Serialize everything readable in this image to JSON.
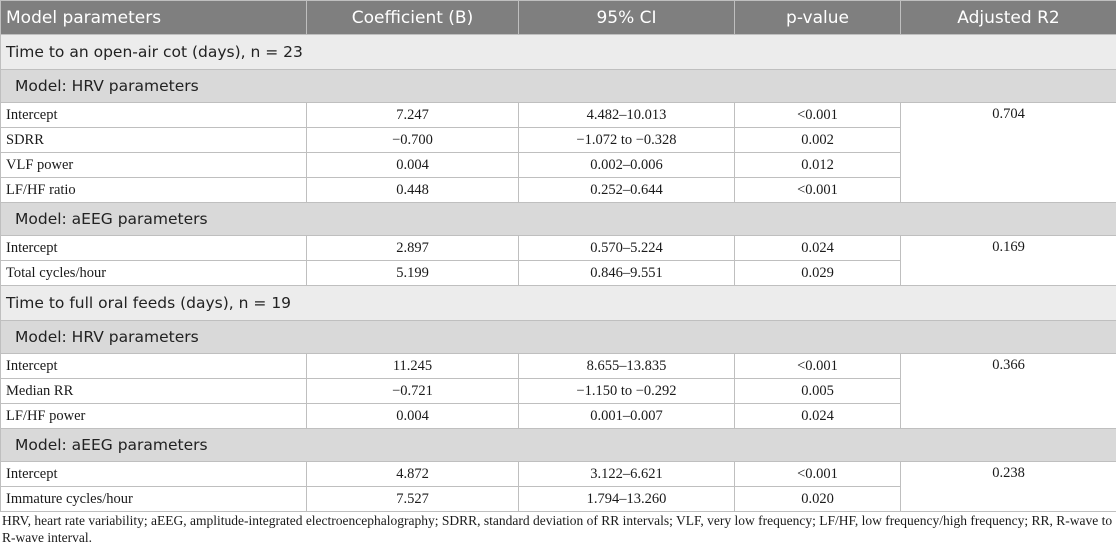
{
  "columns": [
    "Model parameters",
    "Coefficient (B)",
    "95% CI",
    "p-value",
    "Adjusted R2"
  ],
  "sections": [
    {
      "title": "Time to an open-air cot (days), n = 23",
      "models": [
        {
          "title": "Model: HRV parameters",
          "adjusted_r2": "0.704",
          "rows": [
            {
              "param": "Intercept",
              "coef": "7.247",
              "ci": "4.482–10.013",
              "p": "<0.001"
            },
            {
              "param": "SDRR",
              "coef": "−0.700",
              "ci": "−1.072 to −0.328",
              "p": "0.002"
            },
            {
              "param": "VLF power",
              "coef": "0.004",
              "ci": "0.002–0.006",
              "p": "0.012"
            },
            {
              "param": "LF/HF ratio",
              "coef": "0.448",
              "ci": "0.252–0.644",
              "p": "<0.001"
            }
          ]
        },
        {
          "title": "Model: aEEG parameters",
          "adjusted_r2": "0.169",
          "rows": [
            {
              "param": "Intercept",
              "coef": "2.897",
              "ci": "0.570–5.224",
              "p": "0.024"
            },
            {
              "param": "Total cycles/hour",
              "coef": "5.199",
              "ci": "0.846–9.551",
              "p": "0.029"
            }
          ]
        }
      ]
    },
    {
      "title": "Time to full oral feeds (days), n = 19",
      "models": [
        {
          "title": "Model: HRV parameters",
          "adjusted_r2": "0.366",
          "rows": [
            {
              "param": "Intercept",
              "coef": "11.245",
              "ci": "8.655–13.835",
              "p": "<0.001"
            },
            {
              "param": "Median RR",
              "coef": "−0.721",
              "ci": "−1.150 to −0.292",
              "p": "0.005"
            },
            {
              "param": "LF/HF power",
              "coef": "0.004",
              "ci": "0.001–0.007",
              "p": "0.024"
            }
          ]
        },
        {
          "title": "Model: aEEG parameters",
          "adjusted_r2": "0.238",
          "rows": [
            {
              "param": "Intercept",
              "coef": "4.872",
              "ci": "3.122–6.621",
              "p": "<0.001"
            },
            {
              "param": "Immature cycles/hour",
              "coef": "7.527",
              "ci": "1.794–13.260",
              "p": "0.020"
            }
          ]
        }
      ]
    }
  ],
  "footnote": "HRV, heart rate variability; aEEG, amplitude-integrated electroencephalography; SDRR, standard deviation of RR intervals; VLF, very low frequency; LF/HF, low frequency/high frequency; RR, R-wave to R-wave interval."
}
